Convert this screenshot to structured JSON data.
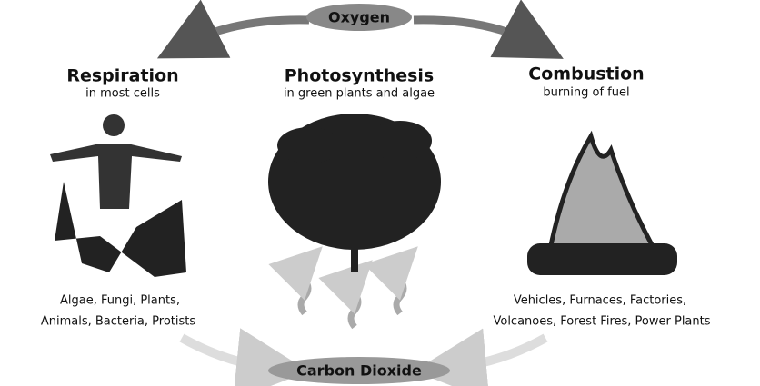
{
  "top": {
    "label": "Oxygen"
  },
  "bottom": {
    "label": "Carbon Dioxide"
  },
  "processes": [
    {
      "title": "Respiration",
      "subtitle": "in most cells",
      "examples": [
        "Algae, Fungi, Plants,",
        "Animals, Bacteria, Protists"
      ]
    },
    {
      "title": "Photosynthesis",
      "subtitle": "in green plants and algae"
    },
    {
      "title": "Combustion",
      "subtitle": "burning of fuel",
      "examples": [
        "Vehicles, Furnaces, Factories,",
        "Volcanoes, Forest Fires, Power Plants"
      ]
    }
  ]
}
